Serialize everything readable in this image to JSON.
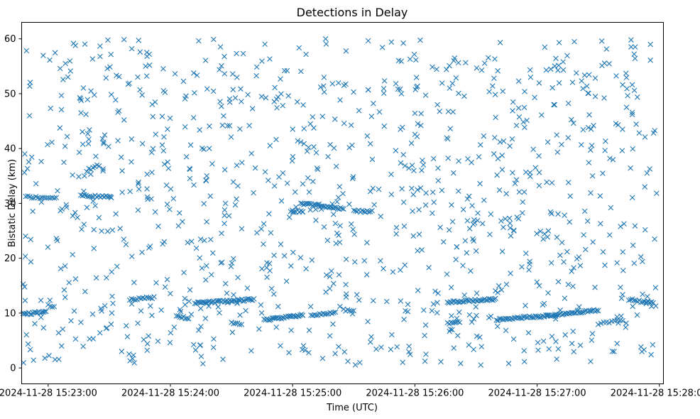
{
  "chart_data": {
    "type": "scatter",
    "title": "Detections in Delay",
    "xlabel": "Time (UTC)",
    "ylabel": "Bistatic Delay (km)",
    "xlim": [
      "2024-11-28 15:22:47",
      "2024-11-28 15:28:02"
    ],
    "ylim": [
      -2.9,
      63.0
    ],
    "x_ticks": [
      "2024-11-28 15:23:00",
      "2024-11-28 15:24:00",
      "2024-11-28 15:25:00",
      "2024-11-28 15:26:00",
      "2024-11-28 15:27:00",
      "2024-11-28 15:28:00"
    ],
    "y_ticks": [
      0,
      10,
      20,
      30,
      40,
      50,
      60
    ],
    "marker": "x",
    "color": "#1f77b4",
    "grid": false,
    "legend": "none",
    "clusters": [
      {
        "type": "track",
        "from": [
          "2024-11-28 15:22:47",
          9.8
        ],
        "to": [
          "2024-11-28 15:22:59",
          10.2
        ],
        "count": 18
      },
      {
        "type": "track",
        "from": [
          "2024-11-28 15:22:49",
          31.2
        ],
        "to": [
          "2024-11-28 15:23:04",
          31.0
        ],
        "count": 16
      },
      {
        "type": "track",
        "from": [
          "2024-11-28 15:23:00",
          11.5
        ],
        "to": [
          "2024-11-28 15:23:03",
          11.0
        ],
        "count": 4
      },
      {
        "type": "track",
        "from": [
          "2024-11-28 15:23:16",
          31.5
        ],
        "to": [
          "2024-11-28 15:23:31",
          31.1
        ],
        "count": 18
      },
      {
        "type": "track",
        "from": [
          "2024-11-28 15:23:20",
          36.2
        ],
        "to": [
          "2024-11-28 15:23:25",
          37.0
        ],
        "count": 6
      },
      {
        "type": "track",
        "from": [
          "2024-11-28 15:23:40",
          12.5
        ],
        "to": [
          "2024-11-28 15:23:52",
          12.8
        ],
        "count": 14
      },
      {
        "type": "track",
        "from": [
          "2024-11-28 15:24:03",
          9.5
        ],
        "to": [
          "2024-11-28 15:24:09",
          9.0
        ],
        "count": 8
      },
      {
        "type": "track",
        "from": [
          "2024-11-28 15:24:12",
          11.8
        ],
        "to": [
          "2024-11-28 15:24:41",
          12.5
        ],
        "count": 45
      },
      {
        "type": "track",
        "from": [
          "2024-11-28 15:24:30",
          8.2
        ],
        "to": [
          "2024-11-28 15:24:35",
          8.0
        ],
        "count": 6
      },
      {
        "type": "track",
        "from": [
          "2024-11-28 15:24:46",
          8.8
        ],
        "to": [
          "2024-11-28 15:25:05",
          9.6
        ],
        "count": 30
      },
      {
        "type": "track",
        "from": [
          "2024-11-28 15:24:59",
          28.6
        ],
        "to": [
          "2024-11-28 15:25:05",
          28.6
        ],
        "count": 8
      },
      {
        "type": "track",
        "from": [
          "2024-11-28 15:25:04",
          30.0
        ],
        "to": [
          "2024-11-28 15:25:25",
          29.0
        ],
        "count": 30
      },
      {
        "type": "track",
        "from": [
          "2024-11-28 15:25:30",
          28.6
        ],
        "to": [
          "2024-11-28 15:25:39",
          28.5
        ],
        "count": 12
      },
      {
        "type": "track",
        "from": [
          "2024-11-28 15:25:09",
          9.6
        ],
        "to": [
          "2024-11-28 15:25:21",
          10.2
        ],
        "count": 15
      },
      {
        "type": "track",
        "from": [
          "2024-11-28 15:25:25",
          10.6
        ],
        "to": [
          "2024-11-28 15:25:30",
          10.4
        ],
        "count": 6
      },
      {
        "type": "track",
        "from": [
          "2024-11-28 15:26:16",
          12.0
        ],
        "to": [
          "2024-11-28 15:26:39",
          12.5
        ],
        "count": 35
      },
      {
        "type": "track",
        "from": [
          "2024-11-28 15:26:16",
          8.2
        ],
        "to": [
          "2024-11-28 15:26:22",
          8.4
        ],
        "count": 8
      },
      {
        "type": "track",
        "from": [
          "2024-11-28 15:26:40",
          8.8
        ],
        "to": [
          "2024-11-28 15:27:05",
          9.5
        ],
        "count": 35
      },
      {
        "type": "track",
        "from": [
          "2024-11-28 15:27:05",
          9.6
        ],
        "to": [
          "2024-11-28 15:27:30",
          10.5
        ],
        "count": 35
      },
      {
        "type": "track",
        "from": [
          "2024-11-28 15:27:30",
          8.0
        ],
        "to": [
          "2024-11-28 15:27:42",
          8.8
        ],
        "count": 10
      },
      {
        "type": "track",
        "from": [
          "2024-11-28 15:27:45",
          12.5
        ],
        "to": [
          "2024-11-28 15:27:57",
          11.8
        ],
        "count": 15
      },
      {
        "type": "clutter",
        "x_range": [
          "2024-11-28 15:22:47",
          "2024-11-28 15:27:59"
        ],
        "y_range": [
          0.5,
          60.0
        ],
        "count": 1050
      }
    ]
  }
}
